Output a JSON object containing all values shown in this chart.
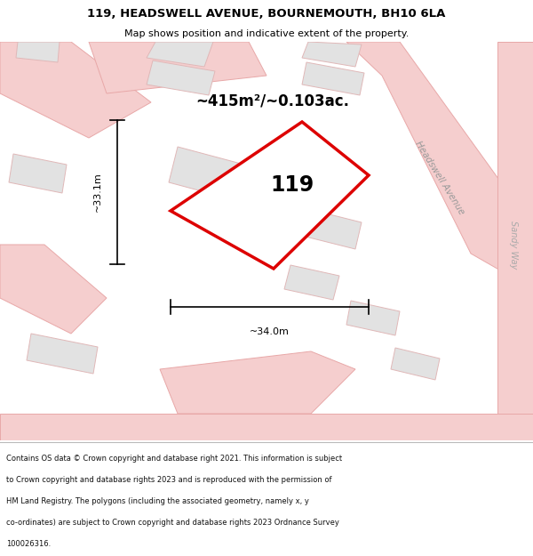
{
  "title_line1": "119, HEADSWELL AVENUE, BOURNEMOUTH, BH10 6LA",
  "title_line2": "Map shows position and indicative extent of the property.",
  "area_label": "~415m²/~0.103ac.",
  "plot_number": "119",
  "dim_vertical": "~33.1m",
  "dim_horizontal": "~34.0m",
  "road_label1": "Headswell Avenue",
  "road_label2": "Sandy Way",
  "footer_text": "Contains OS data © Crown copyright and database right 2021. This information is subject to Crown copyright and database rights 2023 and is reproduced with the permission of HM Land Registry. The polygons (including the associated geometry, namely x, y co-ordinates) are subject to Crown copyright and database rights 2023 Ordnance Survey 100026316.",
  "map_bg": "#f2f0f0",
  "road_color": "#f5cece",
  "road_edge": "#e8a8a8",
  "plot_fill": "#ffffff",
  "plot_stroke": "#dd0000",
  "building_fill": "#e2e2e2",
  "building_stroke": "#e0b8b8"
}
